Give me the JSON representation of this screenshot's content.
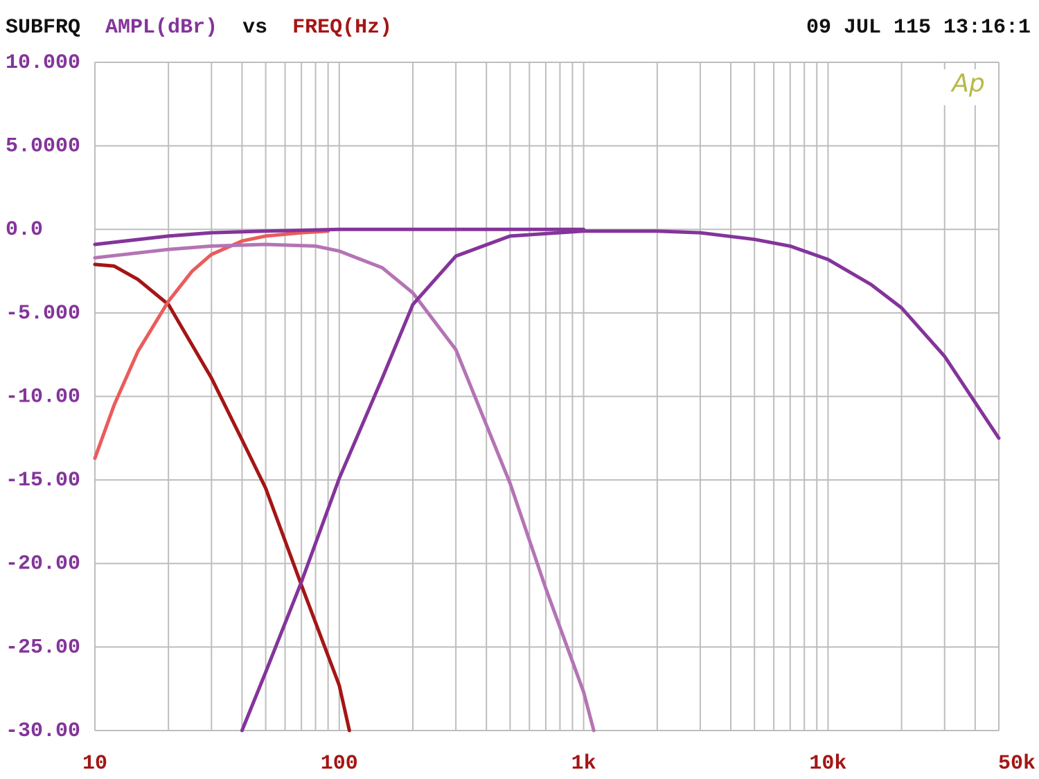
{
  "chart_data": {
    "type": "line",
    "title": "SUBFRQ",
    "ylabel": "AMPL(dBr)",
    "connector": "vs",
    "xlabel": "FREQ(Hz)",
    "timestamp": "09 JUL 115 13:16:1",
    "logo": "Ap",
    "xscale": "log",
    "xlim": [
      10,
      50000
    ],
    "ylim": [
      -30,
      10
    ],
    "xticks": [
      10,
      100,
      {
        "value": 1000,
        "label": "1k"
      },
      {
        "value": 10000,
        "label": "10k"
      },
      {
        "value": 50000,
        "label": "50k"
      }
    ],
    "xminorticks": [
      20,
      30,
      40,
      50,
      60,
      70,
      80,
      90,
      200,
      300,
      400,
      500,
      600,
      700,
      800,
      900,
      2000,
      3000,
      4000,
      5000,
      6000,
      7000,
      8000,
      9000,
      20000,
      30000,
      40000
    ],
    "yticks": [
      {
        "value": 10,
        "label": "10.000"
      },
      {
        "value": 5,
        "label": "5.0000"
      },
      {
        "value": 0,
        "label": "0.0"
      },
      {
        "value": -5,
        "label": "-5.000"
      },
      {
        "value": -10,
        "label": "-10.00"
      },
      {
        "value": -15,
        "label": "-15.00"
      },
      {
        "value": -20,
        "label": "-20.00"
      },
      {
        "value": -25,
        "label": "-25.00"
      },
      {
        "value": -30,
        "label": "-30.00"
      }
    ],
    "grid": true,
    "series": [
      {
        "color": "#a51515",
        "x": [
          10,
          12,
          15,
          20,
          30,
          40,
          50,
          70,
          100,
          110
        ],
        "values": [
          -2.1,
          -2.2,
          -3,
          -4.5,
          -8.9,
          -12.6,
          -15.5,
          -21.3,
          -27.3,
          -30
        ]
      },
      {
        "color": "#ea5c5c",
        "x": [
          10,
          12,
          15,
          20,
          25,
          30,
          40,
          50,
          70,
          90
        ],
        "values": [
          -13.7,
          -10.5,
          -7.3,
          -4.3,
          -2.5,
          -1.5,
          -0.7,
          -0.4,
          -0.2,
          -0.1
        ]
      },
      {
        "color": "#b474b4",
        "x": [
          10,
          20,
          30,
          50,
          80,
          100,
          150,
          200,
          300,
          500,
          700,
          1000,
          1100
        ],
        "values": [
          -1.7,
          -1.2,
          -1.0,
          -0.9,
          -1.0,
          -1.3,
          -2.3,
          -3.8,
          -7.2,
          -15.2,
          -21.5,
          -27.7,
          -30
        ]
      },
      {
        "color": "#84349a",
        "x": [
          40,
          50,
          70,
          100,
          150,
          200,
          300,
          500,
          1000,
          2000,
          3000,
          5000,
          7000,
          10000,
          15000,
          20000,
          30000,
          50000
        ],
        "values": [
          -30,
          -26.5,
          -21.1,
          -14.9,
          -8.9,
          -4.5,
          -1.6,
          -0.4,
          -0.1,
          -0.1,
          -0.2,
          -0.6,
          -1.0,
          -1.8,
          -3.3,
          -4.7,
          -7.6,
          -12.5
        ]
      },
      {
        "color": "#84349a",
        "x": [
          10,
          20,
          30,
          50,
          100,
          500,
          1000
        ],
        "values": [
          -0.9,
          -0.4,
          -0.2,
          -0.1,
          0,
          0,
          0
        ]
      }
    ]
  }
}
